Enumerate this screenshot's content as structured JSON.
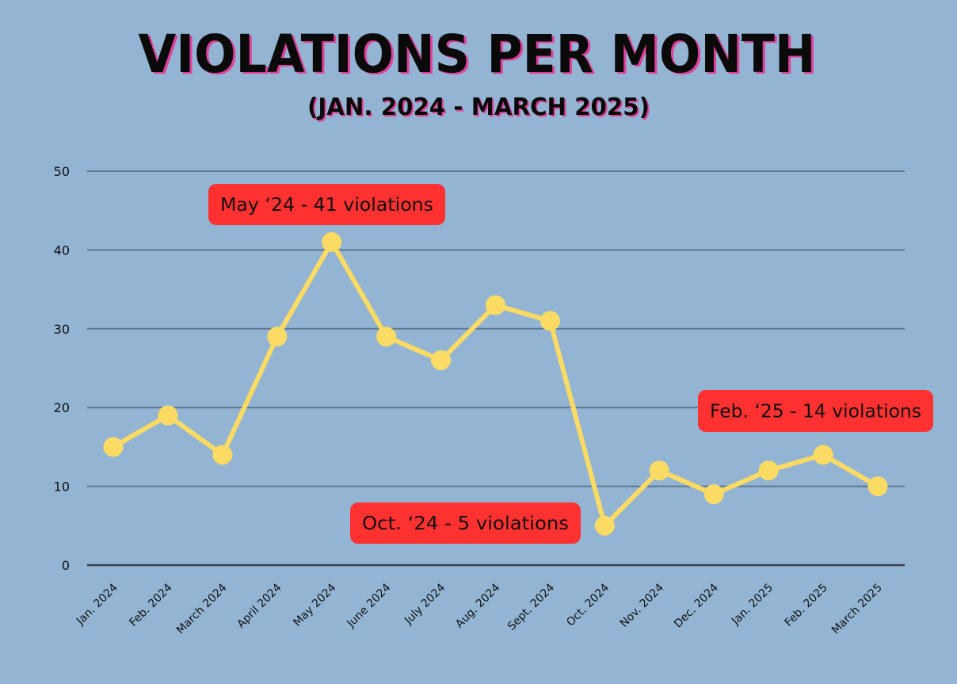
{
  "chart_data": {
    "type": "line",
    "title": "VIOLATIONS PER MONTH",
    "subtitle": "(JAN. 2024 - MARCH 2025)",
    "xlabel": "",
    "ylabel": "",
    "ylim": [
      0,
      50
    ],
    "yticks": [
      "0",
      "10",
      "20",
      "30",
      "40",
      "50"
    ],
    "grid": true,
    "categories": [
      "Jan. 2024",
      "Feb. 2024",
      "March 2024",
      "April 2024",
      "May 2024",
      "June 2024",
      "July 2024",
      "Aug. 2024",
      "Sept. 2024",
      "Oct. 2024",
      "Nov. 2024",
      "Dec. 2024",
      "Jan. 2025",
      "Feb. 2025",
      "March 2025"
    ],
    "series": [
      {
        "values": [
          15,
          19,
          14,
          29,
          41,
          29,
          26,
          33,
          31,
          5,
          12,
          9,
          12,
          14,
          10
        ],
        "color": "#fbdb63"
      }
    ],
    "annotations": [
      {
        "text": "May ‘24 - 41 violations",
        "category": "May 2024"
      },
      {
        "text": "Oct. ‘24 - 5 violations",
        "category": "Oct. 2024"
      },
      {
        "text": "Feb. ‘25 - 14 violations",
        "category": "Feb. 2025"
      }
    ]
  },
  "colors": {
    "background": "#93b4d2",
    "gridline": "#5f7791",
    "axis": "#3a3f47",
    "line": "#fbdb63",
    "annotation_fill": "#ff3131",
    "title_accent": "#e0409a"
  }
}
